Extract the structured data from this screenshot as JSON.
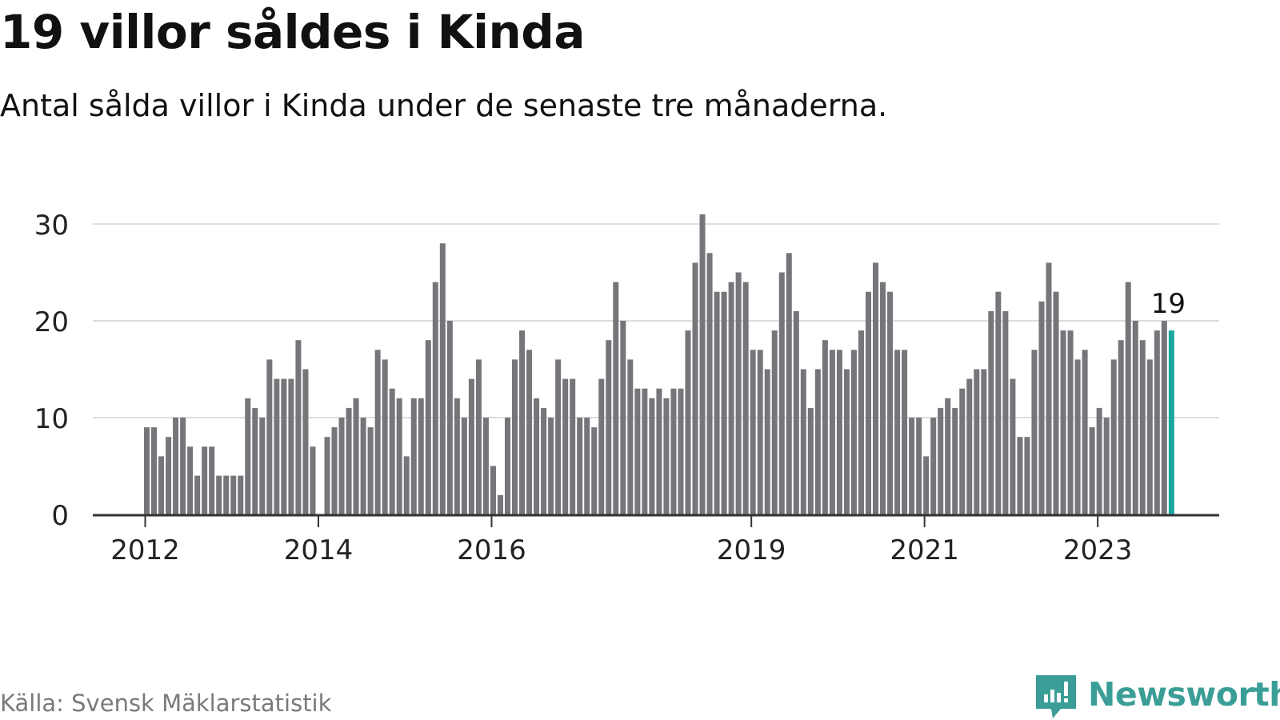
{
  "header": {
    "title": "19 villor såldes i Kinda",
    "subtitle": "Antal sålda villor i Kinda under de senaste tre månaderna."
  },
  "footer": {
    "source": "Källa: Svensk Mäklarstatistik",
    "brand": "Newsworthy"
  },
  "colors": {
    "bar": "#76757a",
    "highlight": "#1aa79e",
    "grid": "#dddddd",
    "axis": "#333333",
    "brand": "#3a9e96"
  },
  "chart_data": {
    "type": "bar",
    "start_period": "2012-01",
    "values": [
      9,
      9,
      6,
      8,
      10,
      10,
      7,
      4,
      7,
      7,
      4,
      4,
      4,
      4,
      12,
      11,
      10,
      16,
      14,
      14,
      14,
      18,
      15,
      7,
      null,
      8,
      9,
      10,
      11,
      12,
      10,
      9,
      17,
      16,
      13,
      12,
      6,
      12,
      12,
      18,
      24,
      28,
      20,
      12,
      10,
      14,
      16,
      10,
      5,
      2,
      10,
      16,
      19,
      17,
      12,
      11,
      10,
      16,
      14,
      14,
      10,
      10,
      9,
      14,
      18,
      24,
      20,
      16,
      13,
      13,
      12,
      13,
      12,
      13,
      13,
      19,
      26,
      31,
      27,
      23,
      23,
      24,
      25,
      24,
      17,
      17,
      15,
      19,
      25,
      27,
      21,
      15,
      11,
      15,
      18,
      17,
      17,
      15,
      17,
      19,
      23,
      26,
      24,
      23,
      17,
      17,
      10,
      10,
      6,
      10,
      11,
      12,
      11,
      13,
      14,
      15,
      15,
      21,
      23,
      21,
      14,
      8,
      8,
      17,
      22,
      26,
      23,
      19,
      19,
      16,
      17,
      9,
      11,
      10,
      16,
      18,
      24,
      20,
      18,
      16,
      19,
      20,
      19
    ],
    "highlight_last": true,
    "highlight_label": "19",
    "y_ticks": [
      0,
      10,
      20,
      30
    ],
    "ylim": [
      0,
      31
    ],
    "x_ticks": [
      {
        "label": "2012",
        "month": "2012-01"
      },
      {
        "label": "2014",
        "month": "2014-01"
      },
      {
        "label": "2016",
        "month": "2016-01"
      },
      {
        "label": "2019",
        "month": "2019-01"
      },
      {
        "label": "2021",
        "month": "2021-01"
      },
      {
        "label": "2023",
        "month": "2023-01"
      }
    ],
    "grid": true,
    "legend": "none"
  }
}
